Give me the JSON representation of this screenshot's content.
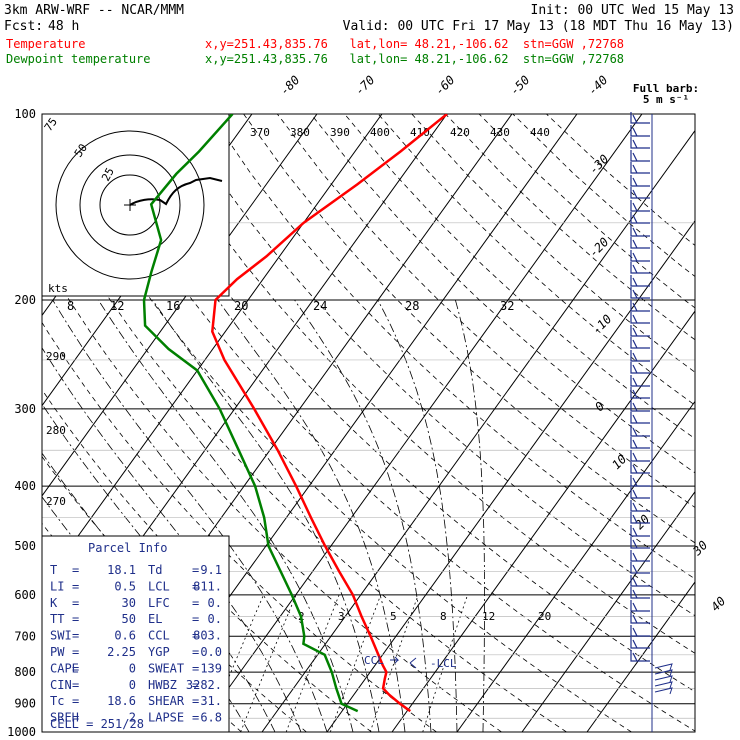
{
  "header": {
    "model": "3km ARW-WRF -- NCAR/MMM",
    "init": "Init: 00 UTC Wed 15 May 13",
    "fcst_label": "Fcst:",
    "fcst_value": "48 h",
    "valid": "Valid: 00 UTC Fri 17 May 13 (18 MDT Thu 16 May 13)",
    "temp_label": "Temperature",
    "temp_info": "x,y=251.43,835.76   lat,lon= 48.21,-106.62  stn=GGW ,72768",
    "dew_label": "Dewpoint temperature",
    "dew_info": "x,y=251.43,835.76   lat,lon= 48.21,-106.62  stn=GGW ,72768",
    "barb_note_1": "Full barb:",
    "barb_note_2": "5 m s⁻¹"
  },
  "colors": {
    "temperature": "#ff0000",
    "dewpoint": "#008000",
    "text_blue": "#1f2f8a",
    "frame": "#000000"
  },
  "chart_data": {
    "type": "skew-t",
    "pressure_levels": [
      "100",
      "200",
      "300",
      "400",
      "500",
      "600",
      "700",
      "800",
      "900",
      "1000"
    ],
    "isotherm_labels": [
      "-80",
      "-70",
      "-60",
      "-50",
      "-40",
      "-30",
      "-20",
      "-10",
      "0",
      "10",
      "20",
      "30",
      "40"
    ],
    "theta_labels": [
      "370",
      "380",
      "390",
      "400",
      "410",
      "420",
      "430",
      "440"
    ],
    "theta_side_labels": [
      "290",
      "280",
      "270"
    ],
    "mixing_ratio_labels": [
      "2",
      "3",
      "5",
      "8",
      "12",
      "20"
    ],
    "hodograph_speed_labels": [
      "8",
      "12",
      "16",
      "20",
      "24",
      "28",
      "32"
    ],
    "hodograph_ring_labels": [
      "75",
      "50",
      "25"
    ],
    "hodograph_units": "kts",
    "lcl_marker": "-LCL",
    "ccl_marker": "CCL",
    "temperature_profile": [
      {
        "p": 925,
        "t": 20.5
      },
      {
        "p": 900,
        "t": 18.1
      },
      {
        "p": 870,
        "t": 15.4
      },
      {
        "p": 850,
        "t": 13.8
      },
      {
        "p": 820,
        "t": 13.0
      },
      {
        "p": 800,
        "t": 12.5
      },
      {
        "p": 780,
        "t": 11.2
      },
      {
        "p": 700,
        "t": 6.1
      },
      {
        "p": 650,
        "t": 2.5
      },
      {
        "p": 600,
        "t": -1.2
      },
      {
        "p": 550,
        "t": -5.9
      },
      {
        "p": 500,
        "t": -10.9
      },
      {
        "p": 450,
        "t": -16.2
      },
      {
        "p": 400,
        "t": -22.0
      },
      {
        "p": 350,
        "t": -28.8
      },
      {
        "p": 300,
        "t": -37.0
      },
      {
        "p": 250,
        "t": -47.0
      },
      {
        "p": 225,
        "t": -52.0
      },
      {
        "p": 200,
        "t": -55.0
      },
      {
        "p": 185,
        "t": -54.0
      },
      {
        "p": 170,
        "t": -52.0
      },
      {
        "p": 150,
        "t": -50.0
      },
      {
        "p": 130,
        "t": -46.0
      },
      {
        "p": 115,
        "t": -43.0
      },
      {
        "p": 100,
        "t": -40.0
      }
    ],
    "dewpoint_profile": [
      {
        "p": 925,
        "td": 12.4
      },
      {
        "p": 900,
        "td": 9.1
      },
      {
        "p": 850,
        "td": 6.6
      },
      {
        "p": 800,
        "td": 4.1
      },
      {
        "p": 750,
        "td": 1.1
      },
      {
        "p": 720,
        "td": -3.4
      },
      {
        "p": 700,
        "td": -4.1
      },
      {
        "p": 650,
        "td": -6.8
      },
      {
        "p": 600,
        "td": -10.6
      },
      {
        "p": 550,
        "td": -14.9
      },
      {
        "p": 500,
        "td": -19.6
      },
      {
        "p": 450,
        "td": -23.4
      },
      {
        "p": 400,
        "td": -28.3
      },
      {
        "p": 350,
        "td": -34.8
      },
      {
        "p": 300,
        "td": -42.3
      },
      {
        "p": 260,
        "td": -50.0
      },
      {
        "p": 240,
        "td": -56.8
      },
      {
        "p": 220,
        "td": -63.0
      },
      {
        "p": 200,
        "td": -66.0
      },
      {
        "p": 180,
        "td": -68.0
      },
      {
        "p": 160,
        "td": -70.0
      },
      {
        "p": 140,
        "td": -75.5
      },
      {
        "p": 125,
        "td": -75.0
      },
      {
        "p": 115,
        "td": -74.0
      },
      {
        "p": 100,
        "td": -73.0
      }
    ]
  },
  "parcel_info": {
    "title": "Parcel Info",
    "rows": [
      {
        "l1": "T",
        "v1": "18.1",
        "l2": "Td",
        "v2": "9.1"
      },
      {
        "l1": "LI",
        "v1": "0.5",
        "l2": "LCL",
        "v2": "811."
      },
      {
        "l1": "K",
        "v1": "30",
        "l2": "LFC",
        "v2": "0."
      },
      {
        "l1": "TT",
        "v1": "50",
        "l2": "EL",
        "v2": "0."
      },
      {
        "l1": "SWI",
        "v1": "0.6",
        "l2": "CCL",
        "v2": "803."
      },
      {
        "l1": "PW",
        "v1": "2.25",
        "l2": "YGP",
        "v2": "0.0"
      },
      {
        "l1": "CAPE",
        "v1": "0",
        "l2": "SWEAT",
        "v2": "139"
      },
      {
        "l1": "CIN",
        "v1": "0",
        "l2": "HWBZ",
        "v2": "3282."
      },
      {
        "l1": "Tc",
        "v1": "18.6",
        "l2": "SHEAR",
        "v2": "31."
      },
      {
        "l1": "SREH",
        "v1": "2",
        "l2": "LAPSE",
        "v2": "6.8"
      }
    ],
    "cell": "CELL = 251/28"
  }
}
